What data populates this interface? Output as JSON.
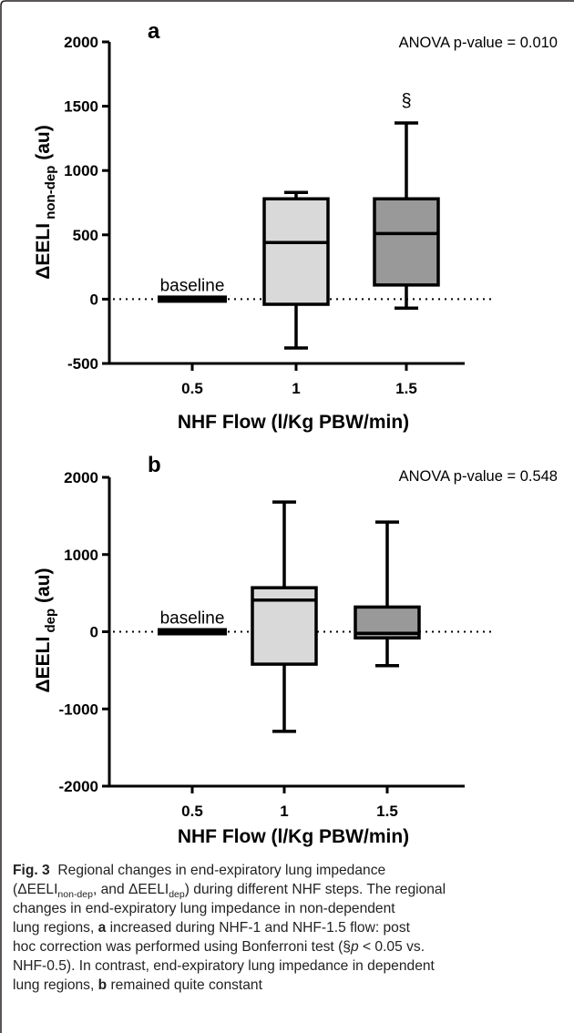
{
  "frame_color": "#231f20",
  "chart_data": [
    {
      "type": "box",
      "panel": "a",
      "annotation_top_right": "ANOVA p-value = 0.010",
      "ylabel": "ΔEELI non-dep (au)",
      "ylabel_main": "ΔEELI",
      "ylabel_sub": " non-dep",
      "ylabel_unit": " (au)",
      "xlabel": "NHF Flow (l/Kg PBW/min)",
      "ylim": [
        -500,
        2000
      ],
      "yticks": [
        -500,
        0,
        500,
        1000,
        1500,
        2000
      ],
      "ytick_labels": [
        "-500",
        "0",
        "500",
        "1000",
        "1500",
        "2000"
      ],
      "categories": [
        "0.5",
        "1",
        "1.5"
      ],
      "baseline_label": "baseline",
      "reference_line": 0,
      "boxes": [
        {
          "category": "0.5",
          "baseline": true,
          "value": 0
        },
        {
          "category": "1",
          "min": -380,
          "q1": -40,
          "median": 440,
          "q3": 780,
          "max": 830,
          "fill": "#d9d9d9"
        },
        {
          "category": "1.5",
          "min": -70,
          "q1": 110,
          "median": 510,
          "q3": 780,
          "max": 1370,
          "fill": "#999999",
          "annotation": "§"
        }
      ]
    },
    {
      "type": "box",
      "panel": "b",
      "annotation_top_right": "ANOVA p-value = 0.548",
      "ylabel": "ΔEELI dep (au)",
      "ylabel_main": "ΔEELI",
      "ylabel_sub": " dep",
      "ylabel_unit": " (au)",
      "xlabel": "NHF Flow (l/Kg PBW/min)",
      "ylim": [
        -2000,
        2000
      ],
      "yticks": [
        -2000,
        -1000,
        0,
        1000,
        2000
      ],
      "ytick_labels": [
        "-2000",
        "-1000",
        "0",
        "1000",
        "2000"
      ],
      "categories": [
        "0.5",
        "1",
        "1.5"
      ],
      "baseline_label": "baseline",
      "reference_line": 0,
      "boxes": [
        {
          "category": "0.5",
          "baseline": true,
          "value": 0
        },
        {
          "category": "1",
          "min": -1290,
          "q1": -420,
          "median": 410,
          "q3": 570,
          "max": 1680,
          "fill": "#d9d9d9"
        },
        {
          "category": "1.5",
          "min": -440,
          "q1": -80,
          "median": -20,
          "q3": 320,
          "max": 1420,
          "fill": "#999999"
        }
      ]
    }
  ],
  "caption": {
    "label": "Fig. 3",
    "line1": "Regional changes in end-expiratory lung impedance",
    "line2_a": "(ΔEELI",
    "line2_sub1": "non-dep",
    "line2_b": ", and ΔEELI",
    "line2_sub2": "dep",
    "line2_c": ") during different NHF steps. The regional",
    "line3": "changes in end-expiratory lung impedance in non-dependent",
    "line4_a": "lung regions, ",
    "line4_bold": "a",
    "line4_b": " increased during NHF-1 and NHF-1.5 flow: post",
    "line5_a": "hoc correction was performed using Bonferroni test (§",
    "line5_p": "p",
    "line5_b": " < 0.05 vs.",
    "line6": "NHF-0.5). In contrast, end-expiratory lung impedance in dependent",
    "line7_a": "lung regions, ",
    "line7_bold": "b",
    "line7_b": " remained quite constant"
  }
}
